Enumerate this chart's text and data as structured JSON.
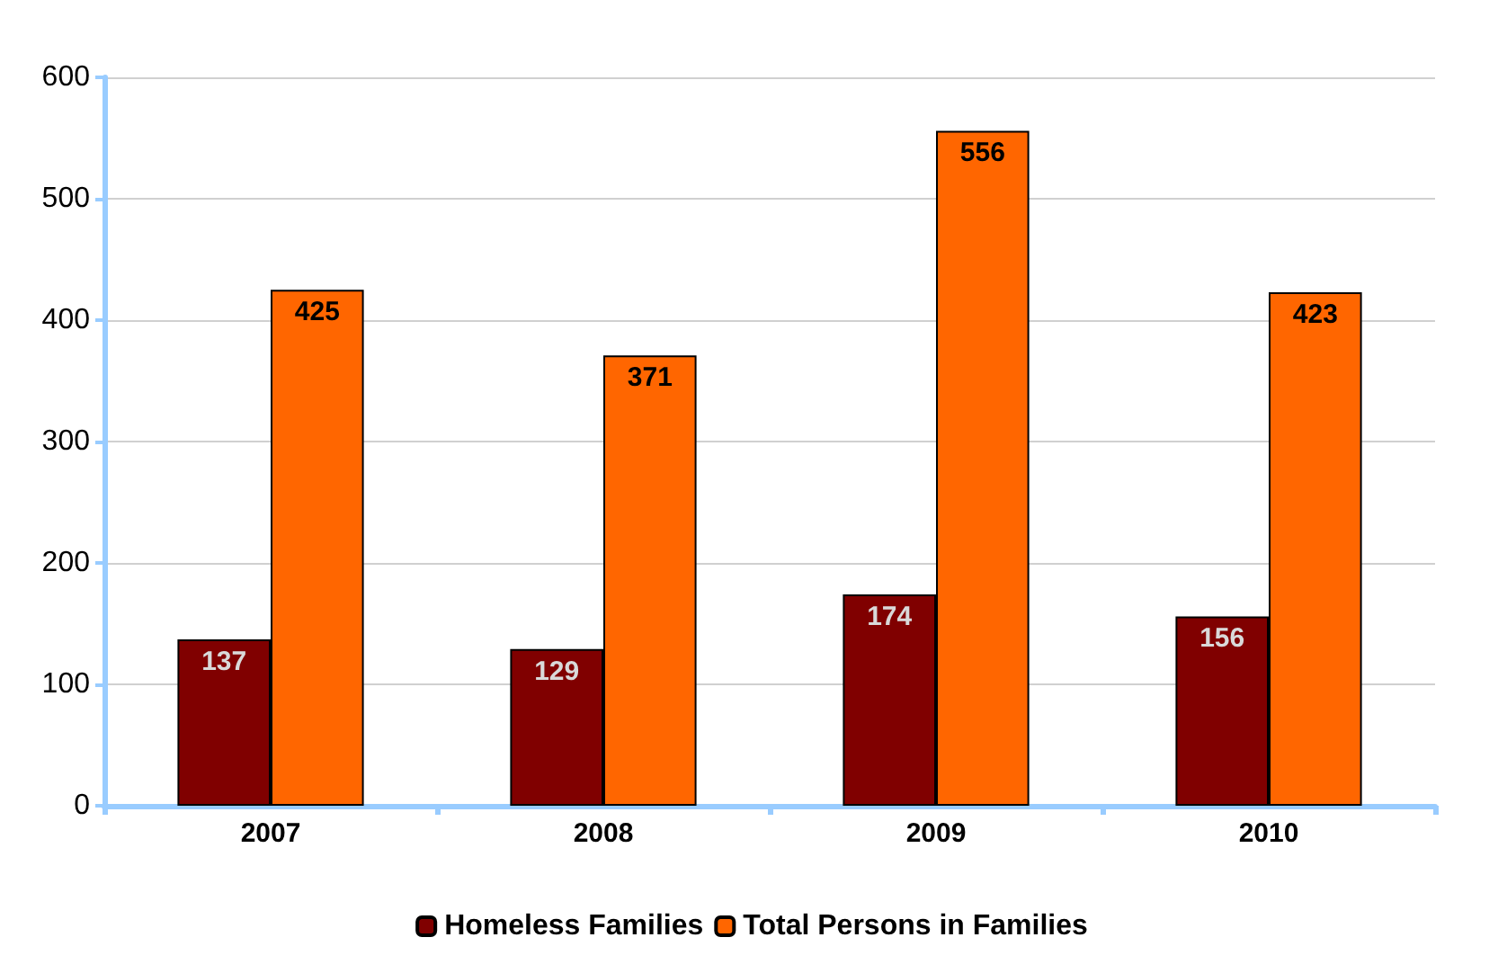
{
  "chart_data": {
    "type": "bar",
    "categories": [
      "2007",
      "2008",
      "2009",
      "2010"
    ],
    "series": [
      {
        "name": "Homeless Families",
        "color": "#800000",
        "values": [
          137,
          129,
          174,
          156
        ]
      },
      {
        "name": "Total Persons in Families",
        "color": "#ff6600",
        "values": [
          425,
          371,
          556,
          423
        ]
      }
    ],
    "ylim": [
      0,
      600
    ],
    "yticks": [
      0,
      100,
      200,
      300,
      400,
      500,
      600
    ],
    "grid": "y",
    "legend": "bottom",
    "data_labels": true
  }
}
